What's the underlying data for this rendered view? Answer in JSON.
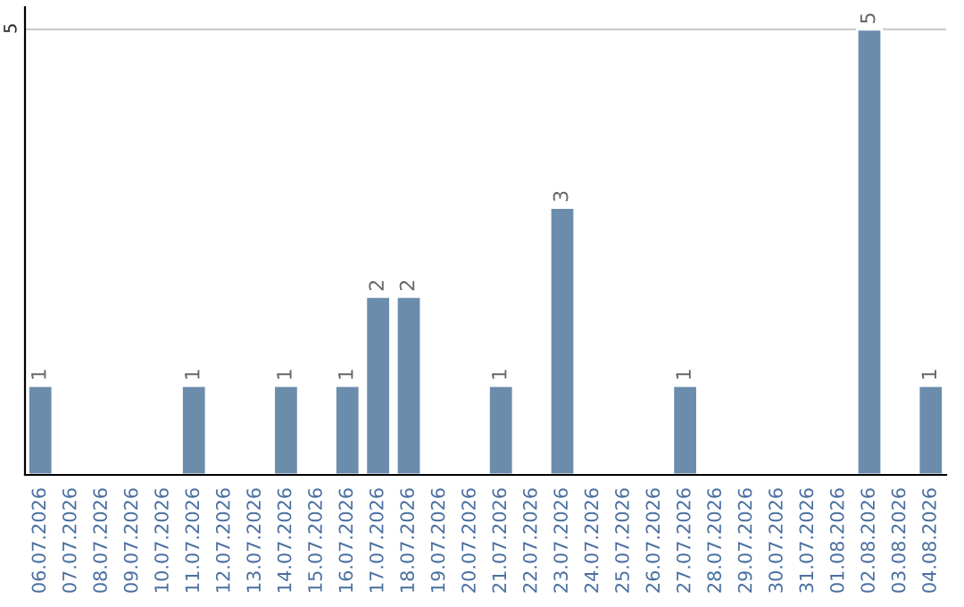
{
  "chart_data": {
    "type": "bar",
    "categories": [
      "06.07.2026",
      "07.07.2026",
      "08.07.2026",
      "09.07.2026",
      "10.07.2026",
      "11.07.2026",
      "12.07.2026",
      "13.07.2026",
      "14.07.2026",
      "15.07.2026",
      "16.07.2026",
      "17.07.2026",
      "18.07.2026",
      "19.07.2026",
      "20.07.2026",
      "21.07.2026",
      "22.07.2026",
      "23.07.2026",
      "24.07.2026",
      "25.07.2026",
      "26.07.2026",
      "27.07.2026",
      "28.07.2026",
      "29.07.2026",
      "30.07.2026",
      "31.07.2026",
      "01.08.2026",
      "02.08.2026",
      "03.08.2026",
      "04.08.2026"
    ],
    "values": [
      1,
      null,
      null,
      null,
      null,
      1,
      null,
      null,
      1,
      null,
      1,
      2,
      2,
      null,
      null,
      1,
      null,
      3,
      null,
      null,
      null,
      1,
      null,
      null,
      null,
      null,
      null,
      5,
      null,
      1
    ],
    "value_labels": [
      "1",
      null,
      null,
      null,
      null,
      "1",
      null,
      null,
      "1",
      null,
      "1",
      "2",
      "2",
      null,
      null,
      "1",
      null,
      "3",
      null,
      null,
      null,
      "1",
      null,
      null,
      null,
      null,
      null,
      "5",
      null,
      "1"
    ],
    "color": "#6b8cab",
    "ylim": [
      0,
      5.25
    ],
    "yticks": [
      5
    ],
    "grid": "y"
  }
}
